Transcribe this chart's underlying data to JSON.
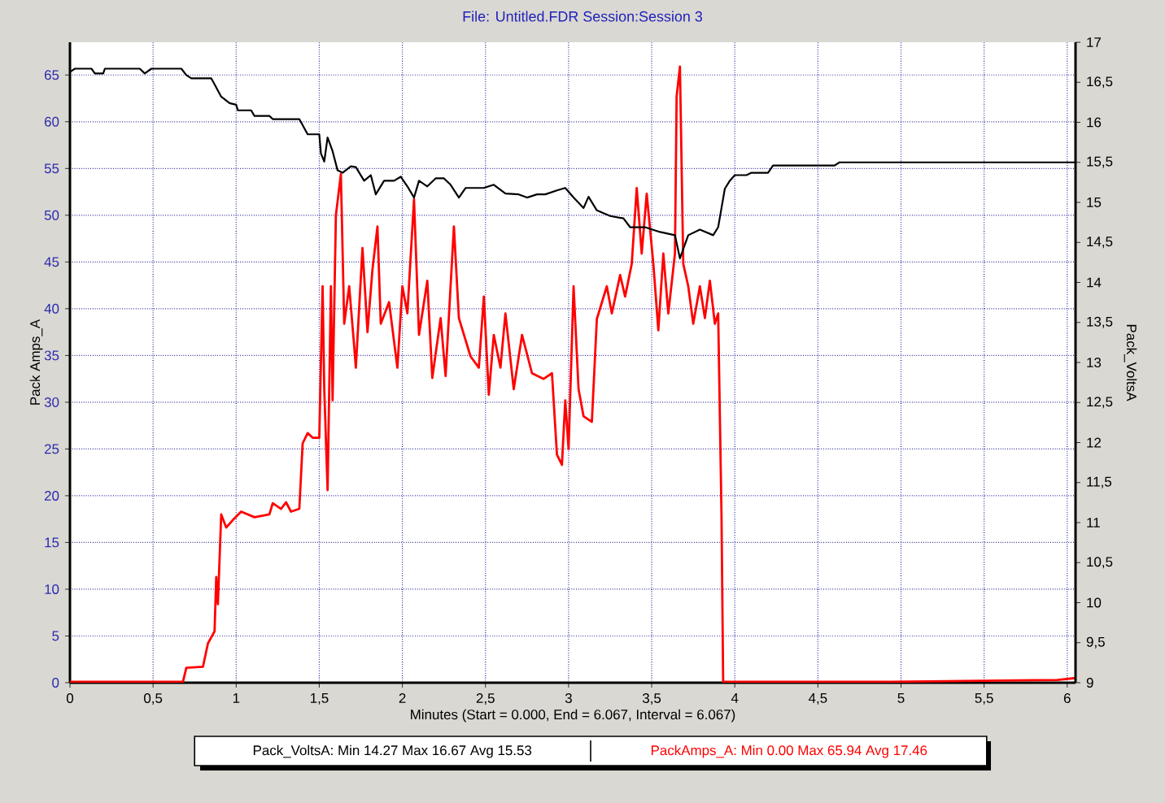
{
  "chart_data": {
    "type": "line",
    "title": "File: Untitled.FDR   Session:Session 3",
    "xlabel": "Minutes (Start = 0.000,  End = 6.067,  Interval =  6.067)",
    "ylabel": "Pack Amps_A",
    "y2label": "Pack_VoltsA",
    "xlim": [
      0,
      6.05
    ],
    "ylim": [
      0,
      68.5
    ],
    "y2lim": [
      9,
      17
    ],
    "xticks": [
      0,
      {
        "value": 0.5,
        "label": "0,5"
      },
      1,
      {
        "value": 1.5,
        "label": "1,5"
      },
      2,
      {
        "value": 2.5,
        "label": "2,5"
      },
      3,
      {
        "value": 3.5,
        "label": "3,5"
      },
      4,
      {
        "value": 4.5,
        "label": "4,5"
      },
      5,
      {
        "value": 5.5,
        "label": "5,5"
      },
      6
    ],
    "yticks": [
      0,
      5,
      10,
      15,
      20,
      25,
      30,
      35,
      40,
      45,
      50,
      55,
      60,
      65
    ],
    "y2ticks": [
      9,
      {
        "value": 9.5,
        "label": "9,5"
      },
      10,
      {
        "value": 10.5,
        "label": "10,5"
      },
      11,
      {
        "value": 11.5,
        "label": "11,5"
      },
      12,
      {
        "value": 12.5,
        "label": "12,5"
      },
      13,
      {
        "value": 13.5,
        "label": "13,5"
      },
      14,
      {
        "value": 14.5,
        "label": "14,5"
      },
      15,
      {
        "value": 15.5,
        "label": "15,5"
      },
      16,
      {
        "value": 16.5,
        "label": "16,5"
      },
      17
    ],
    "grid": true,
    "legend": "bottom",
    "marker": "none",
    "line_style": "solid",
    "annotations": [
      ":  Min 14.27   Max 16.67   Avg 15.53",
      ":  Min 0.00   Max 65.94   Avg 17.46"
    ],
    "series": [
      {
        "name": "Pack_VoltsA",
        "color": "#000000",
        "axis": "y2",
        "x": [
          0,
          0.03,
          0.13,
          0.15,
          0.2,
          0.21,
          0.42,
          0.45,
          0.49,
          0.67,
          0.7,
          0.73,
          0.85,
          0.91,
          0.96,
          1.0,
          1.01,
          1.09,
          1.11,
          1.2,
          1.22,
          1.38,
          1.43,
          1.5,
          1.51,
          1.53,
          1.55,
          1.58,
          1.61,
          1.64,
          1.69,
          1.72,
          1.77,
          1.81,
          1.84,
          1.89,
          1.95,
          1.99,
          2.03,
          2.07,
          2.1,
          2.15,
          2.2,
          2.25,
          2.29,
          2.34,
          2.38,
          2.49,
          2.55,
          2.62,
          2.7,
          2.75,
          2.81,
          2.86,
          2.93,
          2.98,
          3.03,
          3.09,
          3.12,
          3.17,
          3.25,
          3.33,
          3.37,
          3.46,
          3.55,
          3.64,
          3.67,
          3.72,
          3.79,
          3.87,
          3.9,
          3.94,
          3.97,
          4.0,
          4.07,
          4.1,
          4.2,
          4.23,
          4.6,
          4.63,
          6.05
        ],
        "values": [
          16.63,
          16.67,
          16.67,
          16.61,
          16.61,
          16.67,
          16.67,
          16.61,
          16.67,
          16.67,
          16.59,
          16.55,
          16.55,
          16.32,
          16.24,
          16.22,
          16.15,
          16.15,
          16.08,
          16.08,
          16.04,
          16.04,
          15.85,
          15.85,
          15.61,
          15.51,
          15.81,
          15.64,
          15.4,
          15.37,
          15.45,
          15.44,
          15.27,
          15.34,
          15.1,
          15.27,
          15.27,
          15.32,
          15.2,
          15.06,
          15.27,
          15.2,
          15.3,
          15.3,
          15.22,
          15.06,
          15.18,
          15.18,
          15.22,
          15.11,
          15.1,
          15.06,
          15.1,
          15.1,
          15.15,
          15.18,
          15.06,
          14.93,
          15.07,
          14.9,
          14.83,
          14.8,
          14.69,
          14.69,
          14.63,
          14.59,
          14.3,
          14.59,
          14.66,
          14.59,
          14.69,
          15.17,
          15.27,
          15.34,
          15.34,
          15.37,
          15.37,
          15.46,
          15.46,
          15.5,
          15.5
        ]
      },
      {
        "name": "PackAmps_A",
        "color": "#ff0000",
        "x": [
          0,
          0.68,
          0.7,
          0.8,
          0.83,
          0.87,
          0.88,
          0.89,
          0.91,
          0.94,
          0.98,
          1.03,
          1.11,
          1.2,
          1.22,
          1.27,
          1.3,
          1.33,
          1.38,
          1.4,
          1.43,
          1.46,
          1.5,
          1.52,
          1.53,
          1.55,
          1.57,
          1.58,
          1.6,
          1.63,
          1.65,
          1.68,
          1.71,
          1.72,
          1.76,
          1.79,
          1.82,
          1.85,
          1.87,
          1.92,
          1.97,
          2.0,
          2.03,
          2.07,
          2.1,
          2.15,
          2.18,
          2.23,
          2.26,
          2.31,
          2.34,
          2.41,
          2.46,
          2.49,
          2.52,
          2.55,
          2.59,
          2.62,
          2.67,
          2.72,
          2.78,
          2.85,
          2.9,
          2.93,
          2.96,
          2.98,
          3.0,
          3.03,
          3.06,
          3.09,
          3.14,
          3.17,
          3.23,
          3.26,
          3.31,
          3.34,
          3.38,
          3.41,
          3.44,
          3.47,
          3.51,
          3.54,
          3.57,
          3.6,
          3.64,
          3.65,
          3.67,
          3.69,
          3.72,
          3.75,
          3.79,
          3.82,
          3.85,
          3.88,
          3.9,
          3.92,
          3.93,
          4.94,
          5.94,
          6.05
        ],
        "values": [
          0.1,
          0.1,
          1.6,
          1.7,
          4.2,
          5.5,
          11.3,
          8.4,
          18.0,
          16.6,
          17.4,
          18.3,
          17.7,
          18.0,
          19.2,
          18.6,
          19.3,
          18.3,
          18.6,
          25.6,
          26.7,
          26.2,
          26.2,
          42.4,
          31.4,
          20.6,
          42.4,
          30.2,
          50,
          54.4,
          38.4,
          42.4,
          36,
          33.7,
          46.5,
          37.5,
          44.2,
          48.8,
          38.4,
          40.7,
          33.7,
          42.4,
          39.5,
          51.7,
          37.2,
          43,
          32.6,
          39,
          32.8,
          48.8,
          39,
          34.9,
          33.7,
          41.3,
          30.8,
          37.2,
          33.7,
          39.5,
          31.4,
          37.2,
          33.1,
          32.5,
          33.1,
          24.4,
          23.3,
          30.2,
          25,
          42.4,
          31.4,
          28.5,
          27.9,
          38.9,
          42.4,
          39.5,
          43.6,
          41.3,
          44.8,
          52.9,
          45.9,
          52.3,
          44.8,
          37.7,
          45.9,
          39.5,
          45.9,
          62.7,
          65.9,
          44.8,
          42.4,
          38.4,
          42.4,
          39,
          43,
          38.4,
          39.5,
          18,
          0.1,
          0.1,
          0.3,
          0.5
        ]
      }
    ]
  }
}
